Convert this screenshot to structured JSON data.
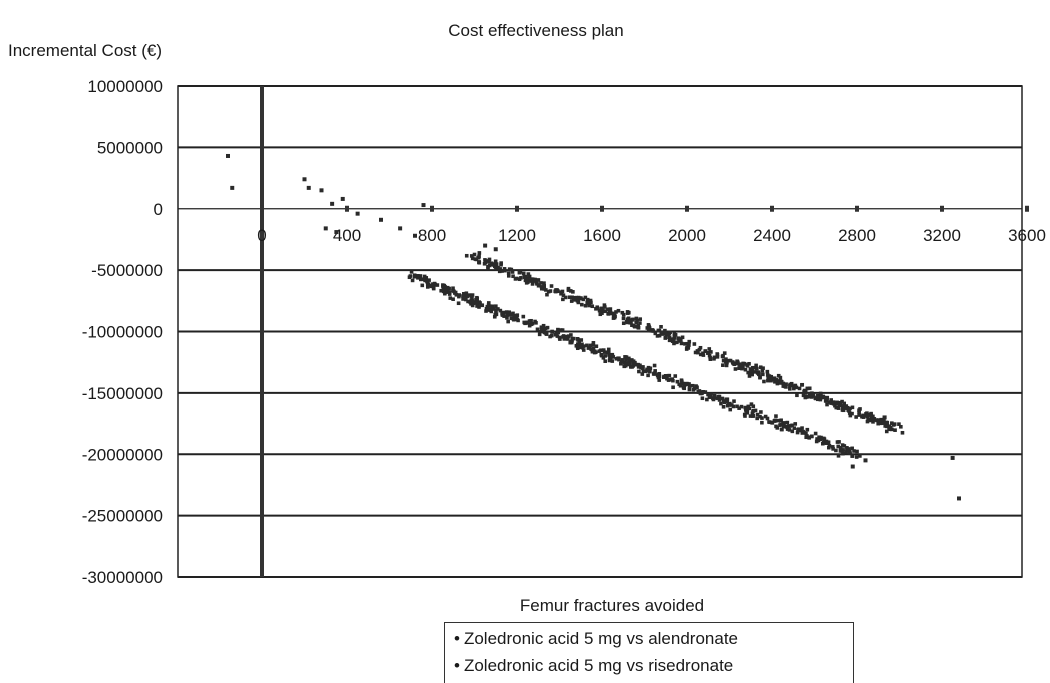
{
  "chart_data": {
    "type": "scatter",
    "title": "Cost effectiveness plan",
    "ylabel": "Incremental Cost (€)",
    "xlabel": "Femur fractures avoided",
    "xlim": [
      -400,
      3600
    ],
    "ylim": [
      -30000000,
      10000000
    ],
    "x_ticks": [
      "0",
      "400",
      "800",
      "1200",
      "1600",
      "2000",
      "2400",
      "2800",
      "3200",
      "3600"
    ],
    "y_ticks": [
      "10000000",
      "5000000",
      "0",
      "-5000000",
      "-10000000",
      "-15000000",
      "-20000000",
      "-25000000",
      "-30000000"
    ],
    "grid": "horizontal",
    "legend_position": "bottom",
    "series": [
      {
        "name": "Zoledronic acid 5 mg vs alendronate",
        "marker": "•"
      },
      {
        "name": "Zoledronic acid 5 mg vs risedronate",
        "marker": "•"
      }
    ],
    "trend": {
      "upper_band": {
        "x": [
          1000,
          3000
        ],
        "y": [
          -4000000,
          -18000000
        ]
      },
      "lower_band": {
        "x": [
          700,
          2800
        ],
        "y": [
          -5500000,
          -20000000
        ]
      }
    },
    "outliers": [
      [
        -160,
        4300000
      ],
      [
        -140,
        1700000
      ],
      [
        200,
        2400000
      ],
      [
        220,
        1700000
      ],
      [
        280,
        1500000
      ],
      [
        330,
        400000
      ],
      [
        380,
        800000
      ],
      [
        300,
        -1600000
      ],
      [
        350,
        -1900000
      ],
      [
        450,
        -400000
      ],
      [
        560,
        -900000
      ],
      [
        650,
        -1600000
      ],
      [
        720,
        -2200000
      ],
      [
        760,
        300000
      ],
      [
        1050,
        -3000000
      ],
      [
        1100,
        -3300000
      ],
      [
        2930,
        -17000000
      ],
      [
        3250,
        -20300000
      ],
      [
        3280,
        -23600000
      ],
      [
        2780,
        -21000000
      ],
      [
        2840,
        -20500000
      ]
    ]
  }
}
